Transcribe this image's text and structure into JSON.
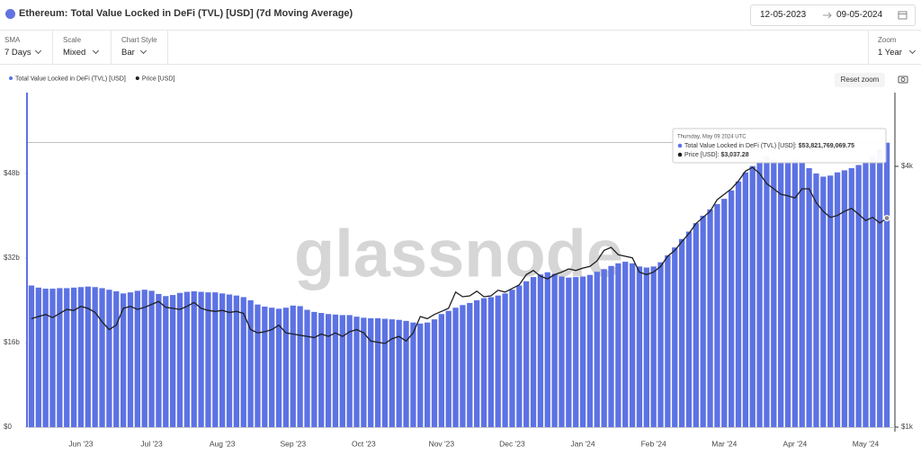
{
  "header": {
    "title": "Ethereum: Total Value Locked in DeFi (TVL) [USD] (7d Moving Average)",
    "date_from": "12-05-2023",
    "date_to": "09-05-2024"
  },
  "controls": [
    {
      "label": "SMA",
      "value": "7 Days"
    },
    {
      "label": "Scale",
      "value": "Mixed"
    },
    {
      "label": "Chart Style",
      "value": "Bar"
    }
  ],
  "zoom": {
    "label": "Zoom",
    "value": "1 Year"
  },
  "reset_zoom": "Reset zoom",
  "chart_data": {
    "type": "bar",
    "watermark": "glassnode",
    "legend": "top-left",
    "categories": [
      null,
      null,
      null,
      null,
      null,
      null,
      null,
      "Jun '23",
      null,
      null,
      null,
      null,
      null,
      null,
      null,
      null,
      null,
      "Jul '23",
      null,
      null,
      null,
      null,
      null,
      null,
      null,
      null,
      null,
      "Aug '23",
      null,
      null,
      null,
      null,
      null,
      null,
      null,
      null,
      null,
      "Sep '23",
      null,
      null,
      null,
      null,
      null,
      null,
      null,
      null,
      null,
      "Oct '23",
      null,
      null,
      null,
      null,
      null,
      null,
      null,
      null,
      null,
      null,
      "Nov '23",
      null,
      null,
      null,
      null,
      null,
      null,
      null,
      null,
      null,
      "Dec '23",
      null,
      null,
      null,
      null,
      null,
      null,
      null,
      null,
      null,
      "Jan '24",
      null,
      null,
      null,
      null,
      null,
      null,
      null,
      null,
      null,
      "Feb '24",
      null,
      null,
      null,
      null,
      null,
      null,
      null,
      null,
      null,
      "Mar '24",
      null,
      null,
      null,
      null,
      null,
      null,
      null,
      null,
      null,
      "Apr '24",
      null,
      null,
      null,
      null,
      null,
      null,
      null,
      null,
      null,
      "May '24",
      null,
      null,
      null
    ],
    "series": [
      {
        "name": "Total Value Locked in DeFi (TVL) [USD]",
        "color": "#5d72e3",
        "type": "bar",
        "values": [
          26.8,
          26.4,
          26.2,
          26.2,
          26.3,
          26.3,
          26.4,
          26.5,
          26.6,
          26.5,
          26.3,
          26.0,
          25.7,
          25.3,
          25.5,
          25.8,
          26.0,
          25.8,
          25.2,
          24.8,
          25.0,
          25.4,
          25.6,
          25.7,
          25.6,
          25.5,
          25.5,
          25.3,
          25.1,
          24.9,
          24.6,
          24.0,
          23.2,
          22.8,
          22.6,
          22.4,
          22.6,
          23.0,
          22.9,
          22.2,
          21.8,
          21.6,
          21.4,
          21.3,
          21.2,
          21.2,
          20.9,
          20.7,
          20.6,
          20.6,
          20.5,
          20.4,
          20.3,
          20.1,
          19.8,
          19.6,
          19.8,
          20.4,
          21.4,
          22.0,
          22.6,
          23.1,
          23.5,
          24.0,
          24.4,
          24.6,
          24.9,
          25.3,
          26.0,
          26.8,
          27.6,
          28.4,
          28.9,
          29.3,
          29.0,
          28.5,
          28.3,
          28.4,
          28.5,
          28.8,
          29.4,
          29.9,
          30.5,
          31.0,
          31.3,
          31.0,
          30.4,
          30.2,
          30.4,
          31.2,
          32.5,
          34.0,
          35.6,
          37.0,
          38.6,
          40.0,
          41.2,
          42.2,
          43.2,
          44.8,
          46.5,
          48.2,
          49.4,
          50.5,
          51.2,
          50.6,
          50.2,
          50.4,
          50.6,
          50.2,
          49.0,
          48.0,
          47.4,
          47.6,
          48.2,
          48.6,
          49.0,
          49.6,
          50.3,
          51.2,
          52.6,
          53.821769069
        ]
      },
      {
        "name": "Price [USD]",
        "color": "#1f1f1f",
        "type": "line",
        "axis": "y2",
        "values": [
          1780,
          1800,
          1820,
          1790,
          1830,
          1870,
          1860,
          1900,
          1880,
          1840,
          1750,
          1680,
          1720,
          1880,
          1900,
          1870,
          1890,
          1920,
          1950,
          1890,
          1880,
          1870,
          1900,
          1940,
          1880,
          1860,
          1850,
          1860,
          1840,
          1850,
          1830,
          1680,
          1650,
          1660,
          1680,
          1720,
          1650,
          1640,
          1630,
          1620,
          1610,
          1640,
          1620,
          1650,
          1620,
          1660,
          1680,
          1650,
          1580,
          1570,
          1560,
          1600,
          1620,
          1580,
          1650,
          1800,
          1780,
          1820,
          1850,
          1880,
          2050,
          2000,
          2010,
          2060,
          2000,
          2010,
          2070,
          2050,
          2090,
          2130,
          2250,
          2300,
          2230,
          2200,
          2250,
          2280,
          2320,
          2300,
          2330,
          2350,
          2420,
          2560,
          2600,
          2500,
          2480,
          2460,
          2280,
          2250,
          2280,
          2350,
          2480,
          2560,
          2680,
          2800,
          2950,
          3050,
          3150,
          3350,
          3450,
          3550,
          3700,
          3900,
          3980,
          3850,
          3650,
          3550,
          3450,
          3420,
          3380,
          3550,
          3550,
          3300,
          3150,
          3050,
          3080,
          3150,
          3200,
          3100,
          3000,
          3050,
          2960,
          3037.28
        ]
      }
    ],
    "ylim": [
      0,
      63.3
    ],
    "yticks": [
      {
        "value": 0,
        "label": "$0"
      },
      {
        "value": 16,
        "label": "$16b"
      },
      {
        "value": 32,
        "label": "$32b"
      },
      {
        "value": 48,
        "label": "$48b"
      }
    ],
    "y2lim": [
      1000,
      5920
    ],
    "y2scale": "log",
    "y2ticks": [
      {
        "value": 1000,
        "label": "$1k"
      },
      {
        "value": 4000,
        "label": "$4k"
      }
    ],
    "tooltip": {
      "title": "Thursday, May 09 2024 UTC",
      "items": [
        {
          "name": "Total Value Locked in DeFi (TVL) [USD]: ",
          "value": "$53,821,769,069.75"
        },
        {
          "name": "Price [USD]: ",
          "value": "$3,037.28"
        }
      ]
    }
  }
}
